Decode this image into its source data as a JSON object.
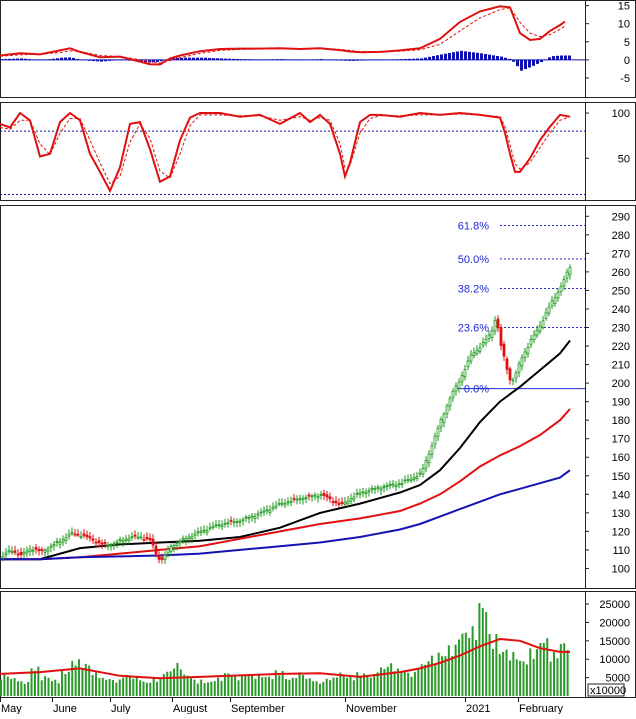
{
  "chart_data": [
    {
      "panel": "macd",
      "type": "line",
      "ylim": [
        -10,
        16
      ],
      "y_ticks": [
        15,
        10,
        5,
        0,
        -5
      ],
      "colors": {
        "macd": "#e01010",
        "signal": "#e01010",
        "histogram": "#1010b0",
        "zero_line": "#1010b0"
      },
      "x": [
        0,
        20,
        40,
        60,
        70,
        80,
        100,
        120,
        150,
        160,
        170,
        180,
        200,
        220,
        240,
        260,
        280,
        300,
        320,
        340,
        350,
        360,
        380,
        400,
        420,
        440,
        460,
        480,
        500,
        510,
        520,
        530,
        540,
        550,
        560,
        565
      ],
      "series": [
        {
          "values": [
            1.2,
            1.8,
            1.5,
            2.6,
            3.2,
            2.2,
            0.7,
            0.9,
            -1.2,
            -1.3,
            0.4,
            1.2,
            2.4,
            3.0,
            3.1,
            3.1,
            3.2,
            3.0,
            3.2,
            2.7,
            2.3,
            2.1,
            2.2,
            2.6,
            3.2,
            5.8,
            10.5,
            13.4,
            14.8,
            14.5,
            7.4,
            5.5,
            5.8,
            8.0,
            9.6,
            10.6
          ],
          "style": "solid"
        },
        {
          "values": [
            1.0,
            1.4,
            1.6,
            2.0,
            2.5,
            2.3,
            1.2,
            0.9,
            -0.4,
            -0.9,
            -0.2,
            0.6,
            1.8,
            2.6,
            2.9,
            3.0,
            3.0,
            3.0,
            3.0,
            2.9,
            2.6,
            2.3,
            2.2,
            2.4,
            2.8,
            4.3,
            8.0,
            11.6,
            13.9,
            14.4,
            10.4,
            7.4,
            6.4,
            7.0,
            8.4,
            9.4
          ],
          "style": "dashed"
        }
      ],
      "histogram": [
        0.2,
        0.4,
        -0.1,
        0.6,
        0.7,
        -0.1,
        -0.5,
        0.0,
        -0.8,
        -0.4,
        0.6,
        0.6,
        0.6,
        0.4,
        0.2,
        0.1,
        0.2,
        0.0,
        0.2,
        -0.2,
        -0.3,
        -0.2,
        0.0,
        0.2,
        0.4,
        1.5,
        2.5,
        1.8,
        0.9,
        0.1,
        -3.0,
        -1.9,
        -0.6,
        1.0,
        1.2,
        1.2
      ]
    },
    {
      "panel": "stochastic",
      "type": "line",
      "ylim": [
        5,
        110
      ],
      "y_ticks": [
        100,
        50
      ],
      "reference_lines": [
        80,
        10
      ],
      "colors": {
        "k": "#e01010",
        "d": "#e01010",
        "reference": "#1010b0"
      },
      "x": [
        0,
        10,
        20,
        30,
        40,
        50,
        60,
        70,
        80,
        90,
        100,
        110,
        120,
        130,
        140,
        150,
        160,
        170,
        180,
        190,
        200,
        220,
        240,
        260,
        280,
        300,
        310,
        320,
        330,
        340,
        345,
        350,
        360,
        370,
        380,
        400,
        420,
        440,
        460,
        480,
        500,
        505,
        510,
        515,
        520,
        530,
        540,
        550,
        560,
        570
      ],
      "series": [
        {
          "values": [
            88,
            84,
            100,
            92,
            52,
            55,
            90,
            100,
            92,
            55,
            35,
            14,
            40,
            88,
            90,
            60,
            24,
            30,
            70,
            95,
            100,
            100,
            96,
            98,
            88,
            100,
            90,
            98,
            88,
            55,
            30,
            45,
            90,
            98,
            98,
            96,
            100,
            98,
            100,
            98,
            95,
            78,
            55,
            35,
            35,
            50,
            70,
            85,
            98,
            96
          ],
          "style": "solid"
        },
        {
          "values": [
            84,
            82,
            92,
            92,
            66,
            54,
            78,
            94,
            94,
            70,
            45,
            22,
            30,
            68,
            88,
            72,
            36,
            28,
            55,
            86,
            98,
            98,
            97,
            97,
            92,
            96,
            92,
            95,
            92,
            66,
            40,
            42,
            78,
            94,
            97,
            97,
            98,
            98,
            99,
            98,
            96,
            85,
            65,
            44,
            38,
            45,
            62,
            78,
            92,
            96
          ],
          "style": "dashed"
        }
      ]
    },
    {
      "panel": "price",
      "type": "candlestick",
      "ylim": [
        90,
        295
      ],
      "y_ticks": [
        290,
        280,
        270,
        260,
        250,
        240,
        230,
        220,
        210,
        200,
        190,
        180,
        170,
        160,
        150,
        140,
        130,
        120,
        110,
        100
      ],
      "colors": {
        "up": "#1e9a1e",
        "down": "#e01010",
        "ma_short": "#000000",
        "ma_mid": "#e01010",
        "ma_long": "#1414b4",
        "fibonacci": "#1e2ad6"
      },
      "close_path": {
        "x": [
          0,
          10,
          20,
          30,
          40,
          50,
          60,
          70,
          80,
          90,
          100,
          110,
          120,
          130,
          140,
          150,
          155,
          160,
          165,
          170,
          180,
          200,
          220,
          240,
          260,
          280,
          300,
          320,
          330,
          340,
          350,
          360,
          380,
          400,
          420,
          430,
          440,
          450,
          460,
          470,
          480,
          490,
          495,
          500,
          505,
          510,
          515,
          520,
          530,
          540,
          550,
          560,
          565,
          570
        ],
        "y": [
          106,
          110,
          107,
          111,
          109,
          112,
          115,
          119,
          118,
          116,
          113,
          113,
          115,
          117,
          117,
          115,
          108,
          104,
          108,
          112,
          115,
          120,
          124,
          126,
          130,
          135,
          138,
          140,
          137,
          134,
          138,
          141,
          144,
          146,
          151,
          165,
          180,
          193,
          203,
          215,
          220,
          227,
          236,
          220,
          210,
          200,
          205,
          213,
          223,
          232,
          243,
          252,
          258,
          264
        ]
      },
      "moving_averages": [
        {
          "name": "",
          "color": "#000000",
          "x": [
            0,
            40,
            80,
            120,
            160,
            200,
            240,
            280,
            320,
            360,
            400,
            420,
            440,
            460,
            480,
            500,
            520,
            540,
            560,
            570
          ],
          "values": [
            105,
            105,
            111,
            113,
            114,
            115,
            117,
            122,
            130,
            135,
            141,
            145,
            153,
            165,
            179,
            190,
            198,
            207,
            216,
            223
          ]
        },
        {
          "name": "",
          "color": "#e01010",
          "x": [
            0,
            40,
            80,
            120,
            160,
            200,
            240,
            280,
            320,
            360,
            400,
            420,
            440,
            460,
            480,
            500,
            520,
            540,
            560,
            570
          ],
          "values": [
            105,
            105,
            106,
            108,
            110,
            112,
            116,
            120,
            124,
            127,
            131,
            135,
            140,
            147,
            155,
            161,
            166,
            172,
            180,
            186
          ]
        },
        {
          "name": "",
          "color": "#1414b4",
          "x": [
            0,
            40,
            80,
            120,
            160,
            200,
            240,
            280,
            320,
            360,
            400,
            420,
            440,
            460,
            480,
            500,
            520,
            540,
            560,
            570
          ],
          "values": [
            105,
            105,
            106,
            106.5,
            107,
            108,
            110,
            112,
            114,
            117,
            121,
            124,
            128,
            132,
            136,
            140,
            143,
            146,
            149,
            153
          ]
        }
      ],
      "fibonacci": [
        {
          "label": "61.8%",
          "value": 285
        },
        {
          "label": "50.0%",
          "value": 267
        },
        {
          "label": "38.2%",
          "value": 251
        },
        {
          "label": "23.6%",
          "value": 230
        },
        {
          "label": "0.0%",
          "value": 197
        }
      ]
    },
    {
      "panel": "volume",
      "type": "bar",
      "ylim": [
        0,
        28000
      ],
      "y_ticks": [
        25000,
        20000,
        15000,
        10000,
        5000
      ],
      "unit_label": "x10000",
      "colors": {
        "bars": "#2a9a2a",
        "average": "#e01010"
      },
      "values": [
        6000,
        5000,
        4000,
        8000,
        5500,
        4500,
        7000,
        10000,
        9000,
        6500,
        5000,
        4500,
        6000,
        5500,
        4000,
        5000,
        7000,
        9000,
        6000,
        4500,
        4000,
        5000,
        6500,
        5500,
        6000,
        6000,
        5500,
        7000,
        5000,
        6500,
        5000,
        4000,
        5000,
        6500,
        5500,
        6500,
        6000,
        8000,
        9000,
        7500,
        6500,
        9000,
        11000,
        12000,
        14000,
        18000,
        19000,
        26000,
        17000,
        13000,
        12000,
        10000,
        13000,
        16000,
        12000,
        15000
      ],
      "average": {
        "x": [
          0,
          40,
          80,
          120,
          160,
          200,
          240,
          280,
          320,
          360,
          400,
          420,
          440,
          460,
          480,
          500,
          520,
          540,
          560,
          570
        ],
        "values": [
          6000,
          6500,
          7500,
          5500,
          4800,
          5200,
          5600,
          6000,
          6200,
          5200,
          6500,
          7500,
          9000,
          11000,
          13500,
          15500,
          15000,
          13000,
          12000,
          12000
        ]
      },
      "x_tick_labels": [
        "May",
        "June",
        "July",
        "August",
        "September",
        "November",
        "2021",
        "February"
      ]
    }
  ]
}
